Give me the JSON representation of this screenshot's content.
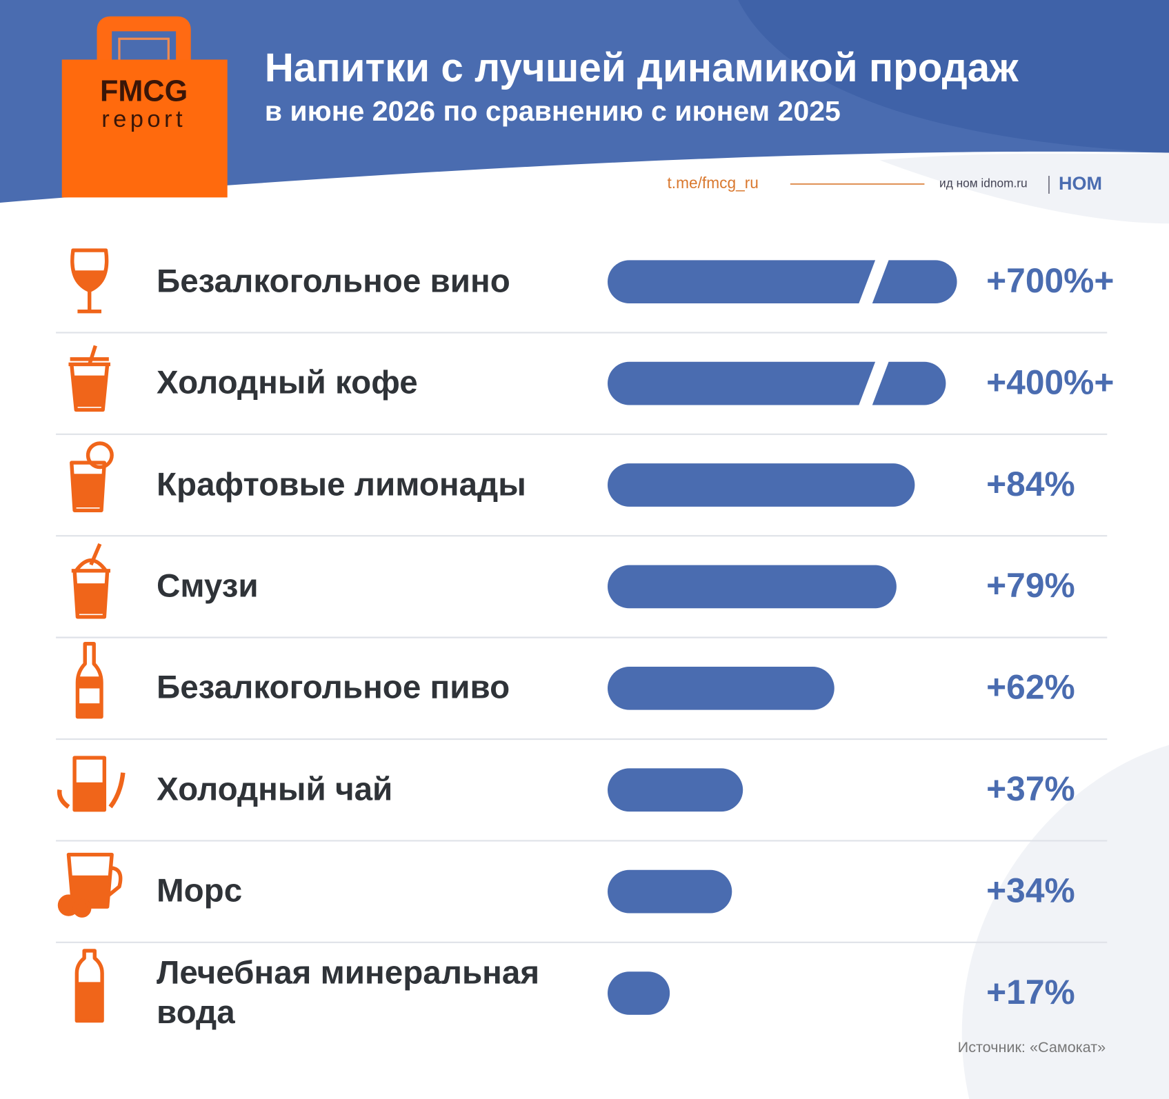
{
  "logo": {
    "name": "FMCG",
    "tagline": "report"
  },
  "links": {
    "channel": "t.me/fmcg_ru",
    "partner": "ид ном idnom.ru",
    "brand": "НОМ"
  },
  "chart_data": {
    "type": "hbar",
    "title": "Напитки с лучшей динамикой продаж",
    "subtitle": "в июне 2026 по сравнению с июнем 2025",
    "categories": [
      "Безалкогольное вино",
      "Холодный кофе",
      "Крафтовые лимонады",
      "Смузи",
      "Безалкогольное пиво",
      "Холодный чай",
      "Морс",
      "Лечебная минеральная вода"
    ],
    "values": [
      700,
      400,
      84,
      79,
      62,
      37,
      34,
      17
    ],
    "value_labels": [
      "+700%+",
      "+400%+",
      "+84%",
      "+79%",
      "+62%",
      "+37%",
      "+34%",
      "+17%"
    ],
    "color": "#4a6cb0",
    "source": "Источник: «Самокат»"
  }
}
